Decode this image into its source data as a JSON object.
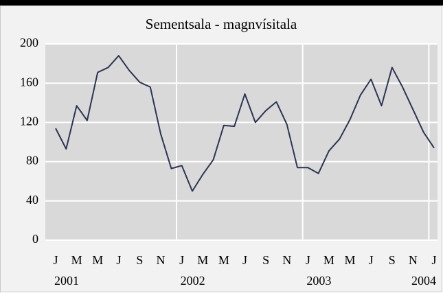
{
  "chart_data": {
    "type": "line",
    "title": "Sementsala - magnvísitala",
    "categories": [
      "J",
      null,
      "M",
      null,
      "M",
      null,
      "J",
      null,
      "S",
      null,
      "N",
      null,
      "J",
      null,
      "M",
      null,
      "M",
      null,
      "J",
      null,
      "S",
      null,
      "N",
      null,
      "J",
      null,
      "M",
      null,
      "M",
      null,
      "J",
      null,
      "S",
      null,
      "N",
      null,
      "J"
    ],
    "year_labels": [
      "2001",
      "2002",
      "2003",
      "2004"
    ],
    "series": [
      {
        "color": "#2b3553",
        "values": [
          114,
          93,
          137,
          122,
          171,
          176,
          188,
          173,
          161,
          156,
          108,
          73,
          76,
          50,
          67,
          82,
          117,
          116,
          149,
          120,
          132,
          141,
          118,
          74,
          74,
          68,
          91,
          103,
          123,
          148,
          164,
          137,
          176,
          156,
          133,
          110,
          94
        ]
      }
    ],
    "ylim": [
      0,
      200
    ],
    "yticks": [
      0,
      40,
      80,
      120,
      160,
      200
    ],
    "grid": true
  }
}
